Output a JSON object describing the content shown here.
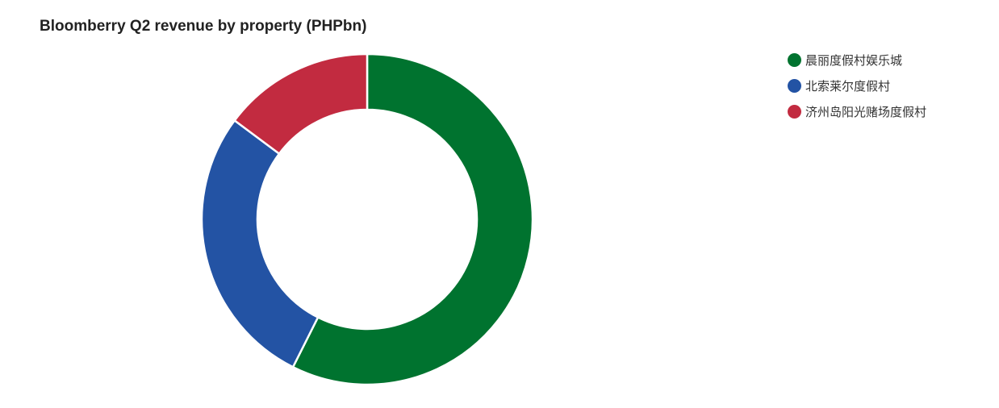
{
  "chart_data": {
    "type": "pie",
    "title": "Bloomberry Q2 revenue by property (PHPbn)",
    "donut": true,
    "legend_position": "top-right",
    "categories": [
      "晨丽度假村娱乐城",
      "北索莱尔度假村",
      "济州岛阳光赌场度假村"
    ],
    "values": [
      57.4,
      27.8,
      14.8
    ],
    "colors": [
      "#00732f",
      "#2353a4",
      "#c22b40"
    ]
  }
}
